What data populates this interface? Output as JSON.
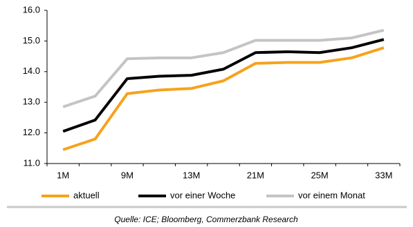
{
  "chart_data": {
    "type": "line",
    "categories": [
      "1M",
      null,
      "9M",
      null,
      "13M",
      null,
      "21M",
      null,
      "25M",
      null,
      "33M"
    ],
    "series": [
      {
        "name": "aktuell",
        "color": "#f7a21b",
        "values": [
          11.45,
          11.8,
          13.28,
          13.4,
          13.45,
          13.7,
          14.27,
          14.3,
          14.3,
          14.45,
          14.78
        ]
      },
      {
        "name": "vor einer Woche",
        "color": "#000000",
        "values": [
          12.05,
          12.42,
          13.77,
          13.85,
          13.88,
          14.08,
          14.62,
          14.65,
          14.62,
          14.78,
          15.05
        ]
      },
      {
        "name": "vor einem Monat",
        "color": "#c4c4c4",
        "values": [
          12.85,
          13.2,
          14.42,
          14.45,
          14.45,
          14.62,
          15.02,
          15.02,
          15.02,
          15.1,
          15.35
        ]
      }
    ],
    "ylim": [
      11,
      16
    ],
    "yticks": [
      {
        "value": 11,
        "label": "11.0"
      },
      {
        "value": 12,
        "label": "12.0"
      },
      {
        "value": 13,
        "label": "13.0"
      },
      {
        "value": 14,
        "label": "14.0"
      },
      {
        "value": 15,
        "label": "15.0"
      },
      {
        "value": 16,
        "label": "16.0"
      }
    ],
    "grid": false,
    "legend": "bottom",
    "source": "Quelle: ICE; Bloomberg, Commerzbank Research"
  }
}
